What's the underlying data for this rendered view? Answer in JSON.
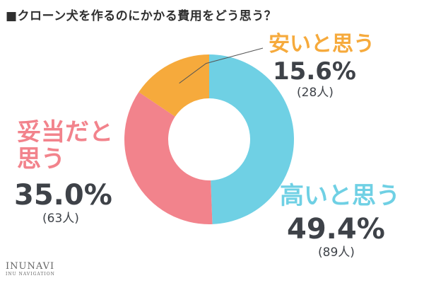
{
  "title": "■クローン犬を作るのにかかる費用をどう思う？",
  "logo": {
    "name": "INUNAVI",
    "sub": "INU NAVIGATION"
  },
  "colors": {
    "high": "#6fd0e4",
    "fair": "#f2838c",
    "cheap": "#f6aa3c",
    "text": "#3e4248"
  },
  "labels": {
    "high": {
      "category": "高いと思う",
      "percent": "49.4%",
      "count": "(89人)"
    },
    "fair": {
      "category_line1": "妥当だと",
      "category_line2": "思う",
      "percent": "35.0%",
      "count": "(63人)"
    },
    "cheap": {
      "category": "安いと思う",
      "percent": "15.6%",
      "count": "(28人)"
    }
  },
  "chart_data": {
    "type": "pie",
    "title": "■クローン犬を作るのにかかる費用をどう思う？",
    "categories": [
      "高いと思う",
      "妥当だと思う",
      "安いと思う"
    ],
    "values": [
      49.4,
      35.0,
      15.6
    ],
    "counts": [
      89,
      63,
      28
    ],
    "unit": "%",
    "donut": true,
    "start": "top, clockwise"
  }
}
